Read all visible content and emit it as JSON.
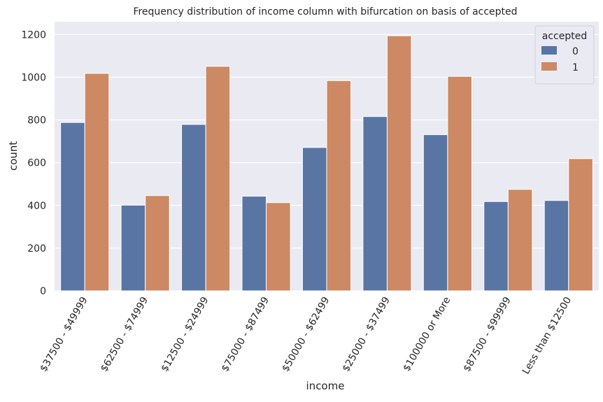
{
  "chart_data": {
    "type": "bar",
    "title": "Frequency distribution of income column with bifurcation on basis of accepted",
    "xlabel": "income",
    "ylabel": "count",
    "categories": [
      "$37500 - $49999",
      "$62500 - $74999",
      "$12500 - $24999",
      "$75000 - $87499",
      "$50000 - $62499",
      "$25000 - $37499",
      "$100000 or More",
      "$87500 - $99999",
      "Less than $12500"
    ],
    "series": [
      {
        "name": "0",
        "color": "#5875a4",
        "values": [
          788,
          401,
          779,
          443,
          671,
          816,
          731,
          418,
          423
        ]
      },
      {
        "name": "1",
        "color": "#cc8963",
        "values": [
          1018,
          446,
          1051,
          413,
          984,
          1194,
          1004,
          475,
          619
        ]
      }
    ],
    "ylim": [
      0,
      1260
    ],
    "yticks": [
      0,
      200,
      400,
      600,
      800,
      1000,
      1200
    ],
    "grid": true,
    "legend": {
      "title": "accepted",
      "position": "top-right"
    }
  }
}
